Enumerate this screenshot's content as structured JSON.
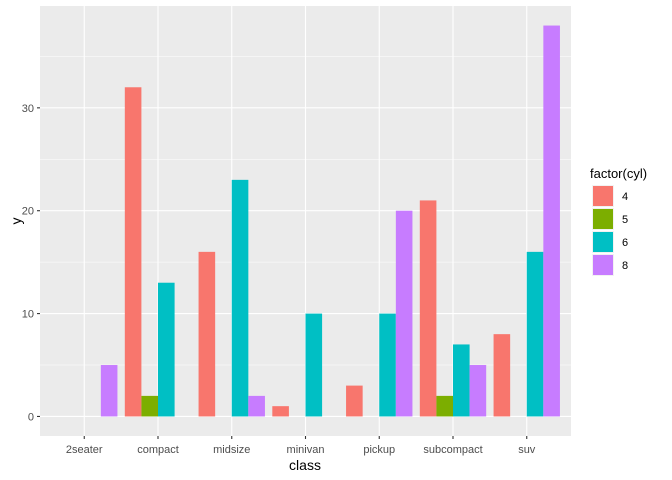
{
  "chart_data": {
    "type": "bar",
    "layout": "grouped-dodge",
    "categories": [
      "2seater",
      "compact",
      "midsize",
      "minivan",
      "pickup",
      "subcompact",
      "suv"
    ],
    "series": [
      {
        "name": "4",
        "values": [
          null,
          32,
          16,
          1,
          3,
          21,
          8
        ]
      },
      {
        "name": "5",
        "values": [
          null,
          2,
          null,
          null,
          null,
          2,
          null
        ]
      },
      {
        "name": "6",
        "values": [
          null,
          13,
          23,
          10,
          10,
          7,
          16
        ]
      },
      {
        "name": "8",
        "values": [
          5,
          null,
          2,
          null,
          20,
          5,
          38
        ]
      }
    ],
    "xlabel": "class",
    "ylabel": "y",
    "ylim": [
      -1.9,
      39.9
    ],
    "yticks": [
      0,
      10,
      20,
      30
    ],
    "grid": true,
    "legend": {
      "title": "factor(cyl)",
      "position": "right"
    },
    "colors": {
      "series": [
        "#F8766D",
        "#7CAE00",
        "#00BFC4",
        "#C77CFF"
      ],
      "panel": "#EBEBEB",
      "grid_major": "#FFFFFF"
    }
  }
}
